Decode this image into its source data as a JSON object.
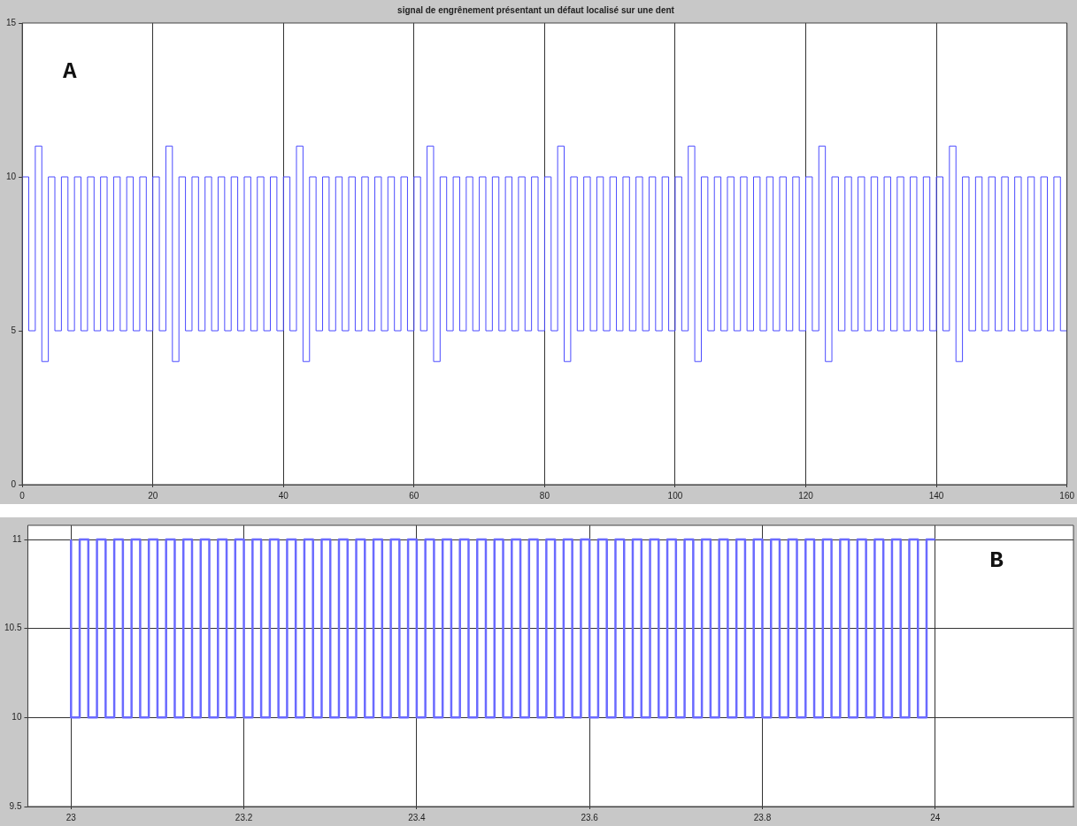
{
  "chart_data": [
    {
      "type": "step",
      "title": "signal de engrênement présentant un défaut localisé sur une dent",
      "annotations": [
        "A"
      ],
      "x": [
        0,
        1,
        2,
        3,
        4,
        5,
        6,
        7,
        8,
        9,
        10,
        11,
        12,
        13,
        14,
        15,
        16,
        17,
        18,
        19,
        20,
        21,
        22,
        23,
        24,
        25,
        26,
        27,
        28,
        29,
        30,
        31,
        32,
        33,
        34,
        35,
        36,
        37,
        38,
        39,
        40,
        41,
        42,
        43,
        44,
        45,
        46,
        47,
        48,
        49,
        50,
        51,
        52,
        53,
        54,
        55,
        56,
        57,
        58,
        59,
        60,
        61,
        62,
        63,
        64,
        65,
        66,
        67,
        68,
        69,
        70,
        71,
        72,
        73,
        74,
        75,
        76,
        77,
        78,
        79,
        80,
        81,
        82,
        83,
        84,
        85,
        86,
        87,
        88,
        89,
        90,
        91,
        92,
        93,
        94,
        95,
        96,
        97,
        98,
        99,
        100,
        101,
        102,
        103,
        104,
        105,
        106,
        107,
        108,
        109,
        110,
        111,
        112,
        113,
        114,
        115,
        116,
        117,
        118,
        119,
        120,
        121,
        122,
        123,
        124,
        125,
        126,
        127,
        128,
        129,
        130,
        131,
        132,
        133,
        134,
        135,
        136,
        137,
        138,
        139,
        140,
        141,
        142,
        143,
        144,
        145,
        146,
        147,
        148,
        149,
        150,
        151,
        152,
        153,
        154,
        155,
        156,
        157,
        158,
        159,
        160
      ],
      "series": [
        {
          "color": "#4b4bff",
          "values": [
            5,
            10,
            5,
            11,
            4,
            10,
            5,
            10,
            5,
            10,
            5,
            10,
            5,
            10,
            5,
            10,
            5,
            10,
            5,
            10,
            5,
            10,
            5,
            11,
            4,
            10,
            5,
            10,
            5,
            10,
            5,
            10,
            5,
            10,
            5,
            10,
            5,
            10,
            5,
            10,
            5,
            10,
            5,
            11,
            4,
            10,
            5,
            10,
            5,
            10,
            5,
            10,
            5,
            10,
            5,
            10,
            5,
            10,
            5,
            10,
            5,
            10,
            5,
            11,
            4,
            10,
            5,
            10,
            5,
            10,
            5,
            10,
            5,
            10,
            5,
            10,
            5,
            10,
            5,
            10,
            5,
            10,
            5,
            11,
            4,
            10,
            5,
            10,
            5,
            10,
            5,
            10,
            5,
            10,
            5,
            10,
            5,
            10,
            5,
            10,
            5,
            10,
            5,
            11,
            4,
            10,
            5,
            10,
            5,
            10,
            5,
            10,
            5,
            10,
            5,
            10,
            5,
            10,
            5,
            10,
            5,
            10,
            5,
            11,
            4,
            10,
            5,
            10,
            5,
            10,
            5,
            10,
            5,
            10,
            5,
            10,
            5,
            10,
            5,
            10,
            5,
            10,
            5,
            11,
            4,
            10,
            5,
            10,
            5,
            10,
            5,
            10,
            5,
            10,
            5,
            10,
            5,
            10,
            5,
            10,
            5
          ]
        }
      ],
      "xlim": [
        0,
        160
      ],
      "xticks": [
        0,
        20,
        40,
        60,
        80,
        100,
        120,
        140,
        160
      ],
      "ylim": [
        0,
        15
      ],
      "yticks": [
        0,
        5,
        10,
        15
      ],
      "grid": "x",
      "legend": false
    },
    {
      "type": "step",
      "annotations": [
        "B"
      ],
      "x": [
        23,
        23.01,
        23.02,
        23.03,
        23.04,
        23.05,
        23.06,
        23.07,
        23.08,
        23.09,
        23.1,
        23.11,
        23.12,
        23.13,
        23.14,
        23.15,
        23.16,
        23.17,
        23.18,
        23.19,
        23.2,
        23.21,
        23.22,
        23.23,
        23.24,
        23.25,
        23.26,
        23.27,
        23.28,
        23.29,
        23.3,
        23.31,
        23.32,
        23.33,
        23.34,
        23.35,
        23.36,
        23.37,
        23.38,
        23.39,
        23.4,
        23.41,
        23.42,
        23.43,
        23.44,
        23.45,
        23.46,
        23.47,
        23.48,
        23.49,
        23.5,
        23.51,
        23.52,
        23.53,
        23.54,
        23.55,
        23.56,
        23.57,
        23.58,
        23.59,
        23.6,
        23.61,
        23.62,
        23.63,
        23.64,
        23.65,
        23.66,
        23.67,
        23.68,
        23.69,
        23.7,
        23.71,
        23.72,
        23.73,
        23.74,
        23.75,
        23.76,
        23.77,
        23.78,
        23.79,
        23.8,
        23.81,
        23.82,
        23.83,
        23.84,
        23.85,
        23.86,
        23.87,
        23.88,
        23.89,
        23.9,
        23.91,
        23.92,
        23.93,
        23.94,
        23.95,
        23.96,
        23.97,
        23.98,
        23.99,
        24
      ],
      "series": [
        {
          "color": "#6a6aff",
          "values": [
            11,
            10,
            11,
            10,
            11,
            10,
            11,
            10,
            11,
            10,
            11,
            10,
            11,
            10,
            11,
            10,
            11,
            10,
            11,
            10,
            11,
            10,
            11,
            10,
            11,
            10,
            11,
            10,
            11,
            10,
            11,
            10,
            11,
            10,
            11,
            10,
            11,
            10,
            11,
            10,
            11,
            10,
            11,
            10,
            11,
            10,
            11,
            10,
            11,
            10,
            11,
            10,
            11,
            10,
            11,
            10,
            11,
            10,
            11,
            10,
            11,
            10,
            11,
            10,
            11,
            10,
            11,
            10,
            11,
            10,
            11,
            10,
            11,
            10,
            11,
            10,
            11,
            10,
            11,
            10,
            11,
            10,
            11,
            10,
            11,
            10,
            11,
            10,
            11,
            10,
            11,
            10,
            11,
            10,
            11,
            10,
            11,
            10,
            11,
            10,
            11
          ]
        }
      ],
      "xlim": [
        22.95,
        24.16
      ],
      "xticks": [
        23,
        23.2,
        23.4,
        23.6,
        23.8,
        24
      ],
      "ylim": [
        9.5,
        11.08
      ],
      "yticks": [
        9.5,
        10,
        10.5,
        11
      ],
      "grid": true,
      "legend": false
    }
  ]
}
